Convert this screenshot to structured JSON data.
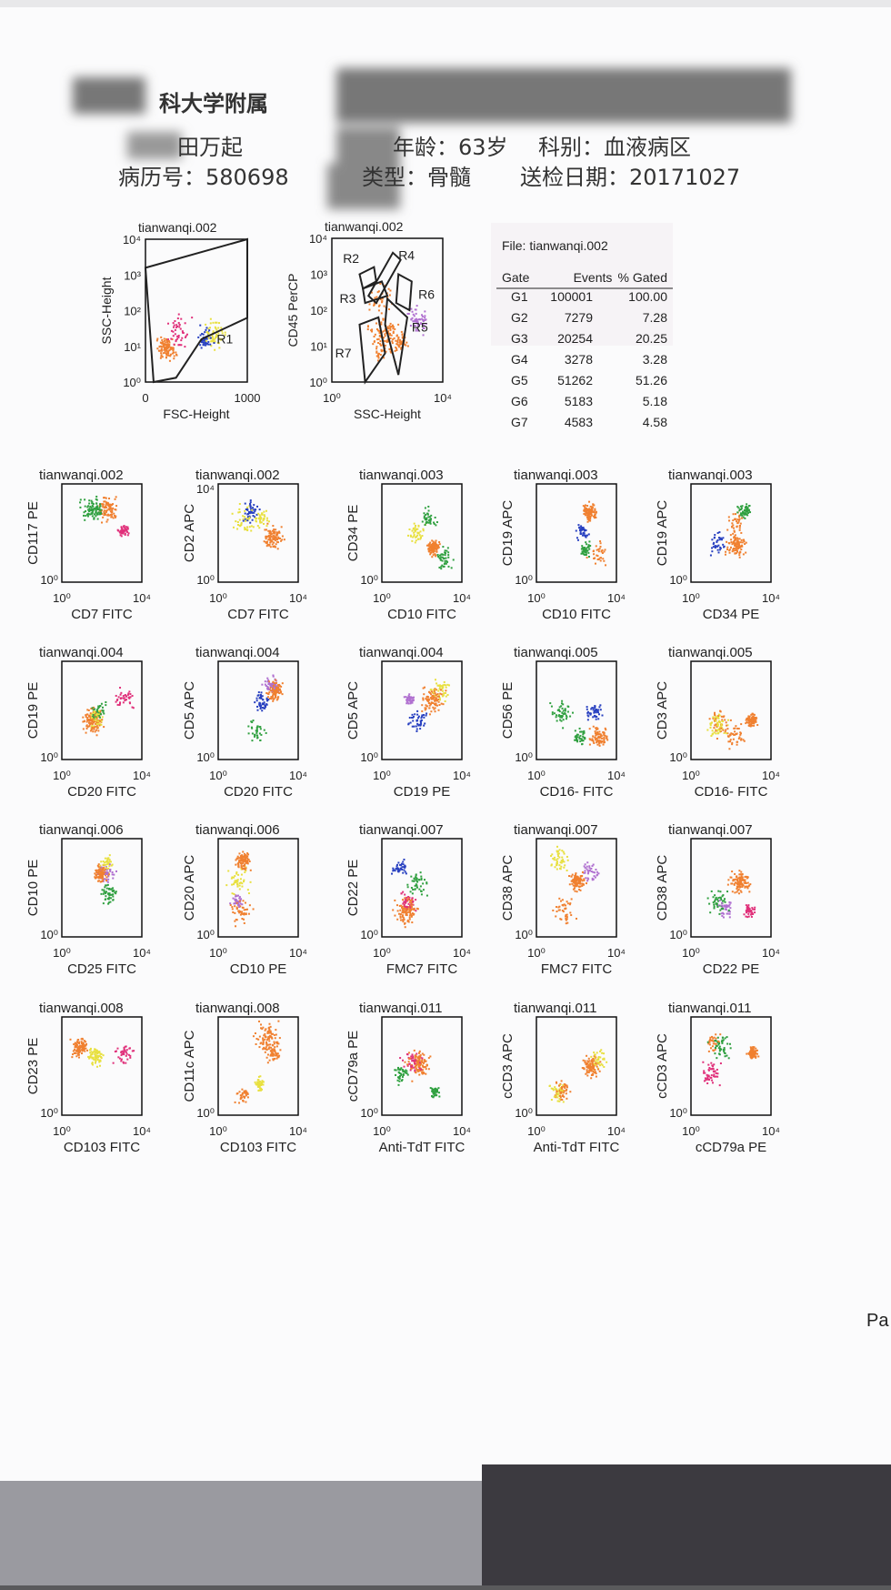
{
  "header": {
    "institution": "科大学附属",
    "patient_name": "田万起",
    "age": "年龄：63岁",
    "department": "科别：血液病区",
    "record_no": "病历号：580698",
    "sample_type": "类型：骨髓",
    "date": "送检日期：20171027"
  },
  "gating_plots": [
    {
      "title": "tianwanqi.002",
      "y_label": "SSC-Height",
      "x_label": "FSC-Height",
      "y_ticks": [
        "10⁰",
        "10¹",
        "10²",
        "10³",
        "10⁴"
      ],
      "x_ticks": [
        "0",
        "1000"
      ],
      "regions": [
        "R1"
      ]
    },
    {
      "title": "tianwanqi.002",
      "y_label": "CD45 PerCP",
      "x_label": "SSC-Height",
      "y_ticks": [
        "10⁰",
        "10¹",
        "10²",
        "10³",
        "10⁴"
      ],
      "x_ticks": [
        "10⁰",
        "10⁴"
      ],
      "regions": [
        "R2",
        "R4",
        "R3",
        "R6",
        "R5",
        "R7"
      ]
    }
  ],
  "table": {
    "file": "File: tianwanqi.002",
    "header": [
      "Gate",
      "Events",
      "% Gated"
    ],
    "rows": [
      [
        "G1",
        "100001",
        "100.00"
      ],
      [
        "G2",
        "7279",
        "7.28"
      ],
      [
        "G3",
        "20254",
        "20.25"
      ],
      [
        "G4",
        "3278",
        "3.28"
      ],
      [
        "G5",
        "51262",
        "51.26"
      ],
      [
        "G6",
        "5183",
        "5.18"
      ],
      [
        "G7",
        "4583",
        "4.58"
      ]
    ]
  },
  "plots": [
    {
      "title": "tianwanqi.002",
      "y_label": "CD117 PE",
      "x_label": "CD7 FITC",
      "y_ticks": [
        "10⁰"
      ],
      "x_ticks": [
        "10⁰",
        "10⁴"
      ]
    },
    {
      "title": "tianwanqi.002",
      "y_label": "CD2 APC",
      "x_label": "CD7 FITC",
      "y_ticks": [
        "10⁰",
        "10⁴"
      ],
      "x_ticks": [
        "10⁰",
        "10⁴"
      ]
    },
    {
      "title": "tianwanqi.003",
      "y_label": "CD34 PE",
      "x_label": "CD10 FITC",
      "y_ticks": [
        "10⁰"
      ],
      "x_ticks": [
        "10⁰",
        "10⁴"
      ]
    },
    {
      "title": "tianwanqi.003",
      "y_label": "CD19 APC",
      "x_label": "CD10 FITC",
      "y_ticks": [
        "10⁰"
      ],
      "x_ticks": [
        "10⁰",
        "10⁴"
      ]
    },
    {
      "title": "tianwanqi.003",
      "y_label": "CD19 APC",
      "x_label": "CD34 PE",
      "y_ticks": [
        "10⁰"
      ],
      "x_ticks": [
        "10⁰",
        "10⁴"
      ]
    },
    {
      "title": "tianwanqi.004",
      "y_label": "CD19 PE",
      "x_label": "CD20 FITC",
      "y_ticks": [
        "10⁰"
      ],
      "x_ticks": [
        "10⁰",
        "10⁴"
      ]
    },
    {
      "title": "tianwanqi.004",
      "y_label": "CD5 APC",
      "x_label": "CD20 FITC",
      "y_ticks": [
        "10⁰"
      ],
      "x_ticks": [
        "10⁰",
        "10⁴"
      ]
    },
    {
      "title": "tianwanqi.004",
      "y_label": "CD5 APC",
      "x_label": "CD19 PE",
      "y_ticks": [
        "10⁰"
      ],
      "x_ticks": [
        "10⁰",
        "10⁴"
      ]
    },
    {
      "title": "tianwanqi.005",
      "y_label": "CD56 PE",
      "x_label": "CD16- FITC",
      "y_ticks": [
        "10⁰"
      ],
      "x_ticks": [
        "10⁰",
        "10⁴"
      ]
    },
    {
      "title": "tianwanqi.005",
      "y_label": "CD3 APC",
      "x_label": "CD16- FITC",
      "y_ticks": [
        "10⁰"
      ],
      "x_ticks": [
        "10⁰",
        "10⁴"
      ]
    },
    {
      "title": "tianwanqi.006",
      "y_label": "CD10 PE",
      "x_label": "CD25 FITC",
      "y_ticks": [
        "10⁰"
      ],
      "x_ticks": [
        "10⁰",
        "10⁴"
      ]
    },
    {
      "title": "tianwanqi.006",
      "y_label": "CD20 APC",
      "x_label": "CD10 PE",
      "y_ticks": [
        "10⁰"
      ],
      "x_ticks": [
        "10⁰",
        "10⁴"
      ]
    },
    {
      "title": "tianwanqi.007",
      "y_label": "CD22 PE",
      "x_label": "FMC7 FITC",
      "y_ticks": [
        "10⁰"
      ],
      "x_ticks": [
        "10⁰",
        "10⁴"
      ]
    },
    {
      "title": "tianwanqi.007",
      "y_label": "CD38 APC",
      "x_label": "FMC7 FITC",
      "y_ticks": [
        "10⁰"
      ],
      "x_ticks": [
        "10⁰",
        "10⁴"
      ]
    },
    {
      "title": "tianwanqi.007",
      "y_label": "CD38 APC",
      "x_label": "CD22 PE",
      "y_ticks": [
        "10⁰"
      ],
      "x_ticks": [
        "10⁰",
        "10⁴"
      ]
    },
    {
      "title": "tianwanqi.008",
      "y_label": "CD23 PE",
      "x_label": "CD103 FITC",
      "y_ticks": [
        "10⁰"
      ],
      "x_ticks": [
        "10⁰",
        "10⁴"
      ]
    },
    {
      "title": "tianwanqi.008",
      "y_label": "CD11c APC",
      "x_label": "CD103 FITC",
      "y_ticks": [
        "10⁰"
      ],
      "x_ticks": [
        "10⁰",
        "10⁴"
      ]
    },
    {
      "title": "tianwanqi.011",
      "y_label": "cCD79a PE",
      "x_label": "Anti-TdT FITC",
      "y_ticks": [
        "10⁰"
      ],
      "x_ticks": [
        "10⁰",
        "10⁴"
      ]
    },
    {
      "title": "tianwanqi.011",
      "y_label": "cCD3 APC",
      "x_label": "Anti-TdT FITC",
      "y_ticks": [
        "10⁰"
      ],
      "x_ticks": [
        "10⁰",
        "10⁴"
      ]
    },
    {
      "title": "tianwanqi.011",
      "y_label": "cCD3 APC",
      "x_label": "cCD79a PE",
      "y_ticks": [
        "10⁰"
      ],
      "x_ticks": [
        "10⁰",
        "10⁴"
      ]
    }
  ],
  "page_marker": "Pa"
}
